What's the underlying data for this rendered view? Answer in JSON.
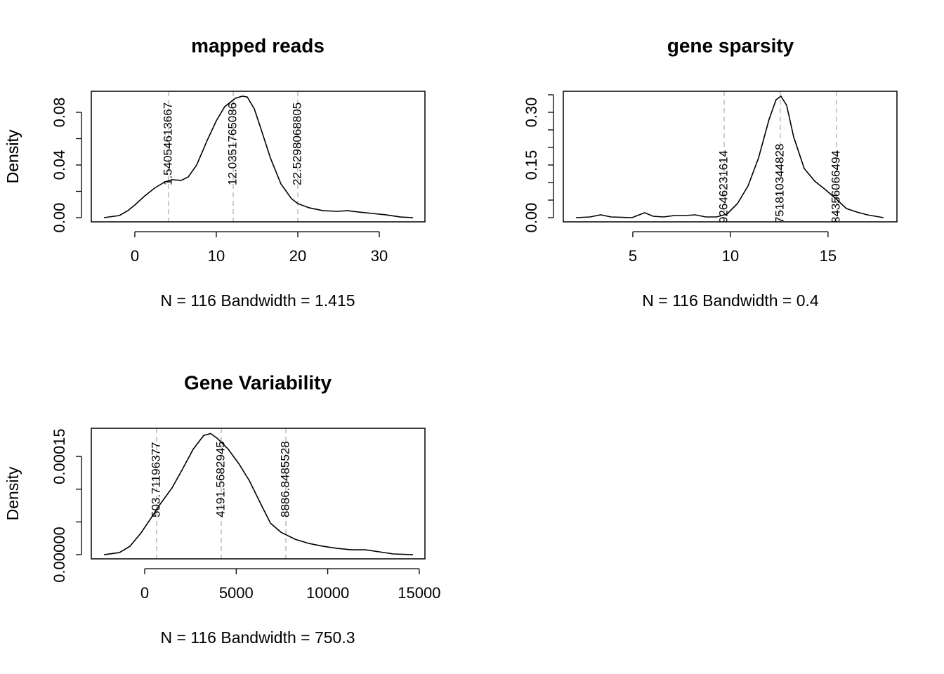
{
  "chart_data": [
    {
      "type": "line",
      "title": "mapped reads",
      "xlabel": "N = 116   Bandwidth = 1.415",
      "ylabel": "Density",
      "color": "#000000",
      "x": [
        -3.79,
        -1.9,
        -0.86,
        0,
        1.12,
        2.41,
        3.71,
        4.57,
        5.69,
        6.55,
        7.59,
        8.88,
        10.0,
        11.03,
        12.33,
        13.19,
        13.79,
        14.66,
        15.52,
        16.64,
        17.93,
        19.22,
        20.0,
        21.38,
        23.1,
        24.83,
        26.12,
        27.41,
        29.14,
        30.86,
        32.59,
        34.14
      ],
      "values": [
        0,
        0.0016,
        0.0053,
        0.0096,
        0.016,
        0.0224,
        0.0272,
        0.0288,
        0.0283,
        0.0309,
        0.04,
        0.0587,
        0.0736,
        0.0843,
        0.0907,
        0.0923,
        0.0917,
        0.0827,
        0.0667,
        0.0453,
        0.0256,
        0.0144,
        0.0107,
        0.0075,
        0.0053,
        0.0048,
        0.0053,
        0.0043,
        0.0032,
        0.0021,
        0.0005,
        0
      ],
      "xlim": [
        -5.34,
        35.6
      ],
      "ylim": [
        -0.0032,
        0.096
      ],
      "xticks": [
        0,
        10,
        20,
        30
      ],
      "yticks": [
        {
          "value": 0,
          "label": "0.00"
        },
        {
          "value": 0.04,
          "label": "0.04"
        },
        {
          "value": 0.08,
          "label": "0.08"
        }
      ],
      "yminorticks": [
        0.02,
        0.06
      ],
      "vline_color": "#bbbbbb",
      "vlines": [
        {
          "x": 4.14,
          "label": "1.54054613667"
        },
        {
          "x": 12.07,
          "label": "12.0351765086"
        },
        {
          "x": 20.0,
          "label": "22.5298068805"
        }
      ]
    },
    {
      "type": "line",
      "title": "gene sparsity",
      "xlabel": "N = 116   Bandwidth = 0.4",
      "ylabel": "Density",
      "color": "#000000",
      "x": [
        2.09,
        2.81,
        3.35,
        3.88,
        4.96,
        5.61,
        6.04,
        6.58,
        7.12,
        7.66,
        8.2,
        8.74,
        9.28,
        9.82,
        10.36,
        10.9,
        11.44,
        11.98,
        12.34,
        12.59,
        12.88,
        13.24,
        13.78,
        14.32,
        14.86,
        15.4,
        15.94,
        16.47,
        17.01,
        17.84
      ],
      "values": [
        0,
        0.002,
        0.008,
        0.002,
        0,
        0.014,
        0.004,
        0.002,
        0.006,
        0.006,
        0.008,
        0.002,
        0.002,
        0.01,
        0.04,
        0.09,
        0.17,
        0.28,
        0.336,
        0.346,
        0.32,
        0.23,
        0.14,
        0.104,
        0.08,
        0.054,
        0.026,
        0.016,
        0.008,
        0
      ],
      "xlim": [
        1.44,
        18.53
      ],
      "ylim": [
        -0.012,
        0.36
      ],
      "xticks": [
        5,
        10,
        15
      ],
      "yticks": [
        {
          "value": 0,
          "label": "0.00"
        },
        {
          "value": 0.15,
          "label": "0.15"
        },
        {
          "value": 0.3,
          "label": "0.30"
        }
      ],
      "yminorticks": [
        0.05,
        0.1,
        0.2,
        0.25,
        0.35
      ],
      "vline_color": "#bbbbbb",
      "vlines": [
        {
          "x": 9.68,
          "label": "92646231614"
        },
        {
          "x": 12.55,
          "label": "751810344828"
        },
        {
          "x": 15.43,
          "label": "84356066494"
        }
      ]
    },
    {
      "type": "line",
      "title": "Gene Variability",
      "xlabel": "N = 116   Bandwidth = 750.3",
      "ylabel": "Density",
      "color": "#000000",
      "x": [
        -2226,
        -1381,
        -806,
        -230,
        345,
        844,
        1497,
        2072,
        2648,
        3223,
        3607,
        3991,
        4566,
        5142,
        5718,
        6293,
        6869,
        7444,
        8212,
        8979,
        9747,
        10514,
        11282,
        12049,
        12817,
        13584,
        14659
      ],
      "values": [
        0,
        3.2e-06,
        1.28e-05,
        3.21e-05,
        5.57e-05,
        7.71e-05,
        0.000102,
        0.000131,
        0.000161,
        0.000182,
        0.000185,
        0.000177,
        0.000161,
        0.000139,
        0.000113,
        8.03e-05,
        4.82e-05,
        3.43e-05,
        2.36e-05,
        1.71e-05,
        1.28e-05,
        9.6e-06,
        7.5e-06,
        7.5e-06,
        4.3e-06,
        1.1e-06,
        0
      ],
      "xlim": [
        -2916,
        15311
      ],
      "ylim": [
        -6.4e-06,
        0.000193
      ],
      "xticks": [
        0,
        5000,
        10000,
        15000
      ],
      "yticks": [
        {
          "value": 0,
          "label": "0.00000"
        },
        0.00015
      ],
      "yminorticks": [
        5e-05,
        0.0001
      ],
      "vline_color": "#bbbbbb",
      "vlines": [
        {
          "x": 652,
          "label": "503.71196377"
        },
        {
          "x": 4183,
          "label": "4191.5682945"
        },
        {
          "x": 7713,
          "label": "8886.8485528"
        }
      ]
    }
  ]
}
